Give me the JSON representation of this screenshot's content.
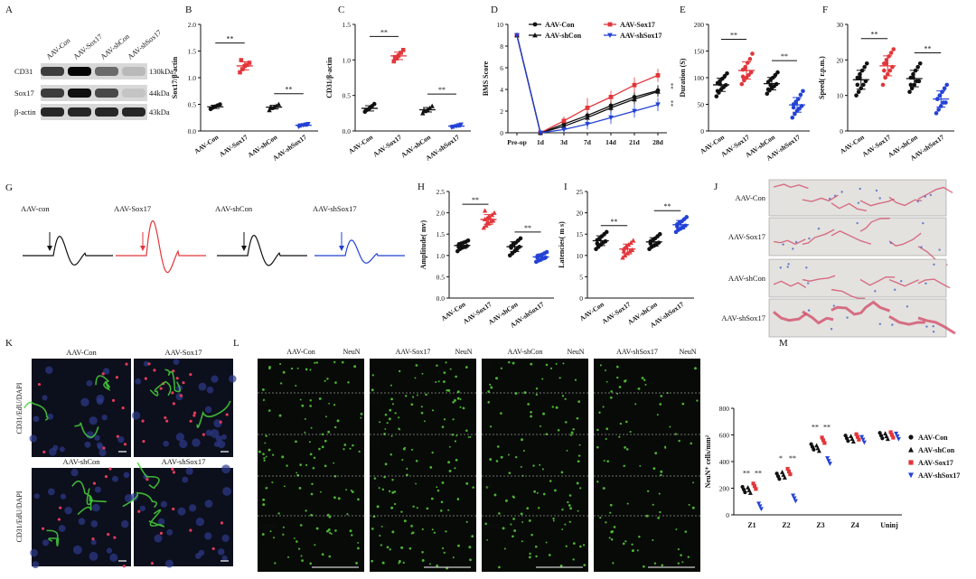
{
  "panel_letters": [
    "A",
    "B",
    "C",
    "D",
    "E",
    "F",
    "G",
    "H",
    "I",
    "J",
    "K",
    "L",
    "M"
  ],
  "colors": {
    "black": "#111111",
    "red": "#e2363a",
    "blue": "#2342d6",
    "green": "#58d23a",
    "pink": "#e23a5a"
  },
  "blot": {
    "lanes": [
      "AAV-Con",
      "AAV-Sox17",
      "AAV-shCon",
      "AAV-shSox17"
    ],
    "rows": [
      {
        "name": "CD31",
        "size": "130kDa",
        "intensity": [
          0.75,
          1.0,
          0.55,
          0.2
        ]
      },
      {
        "name": "Sox17",
        "size": "44kDa",
        "intensity": [
          0.75,
          0.95,
          0.7,
          0.15
        ]
      },
      {
        "name": "β-actin",
        "size": "43kDa",
        "intensity": [
          0.85,
          0.85,
          0.85,
          0.85
        ]
      }
    ]
  },
  "chart_data": [
    {
      "id": "B",
      "type": "scatter",
      "ylabel": "Sox17/β-actin",
      "ylim": [
        0,
        2
      ],
      "yticks": [
        "0.0",
        "0.5",
        "1.0",
        "1.5",
        "2.0"
      ],
      "categories": [
        "AAV-Con",
        "AAV-Sox17",
        "AAV-shCon",
        "AAV-shSox17"
      ],
      "groups": [
        [
          0.41,
          0.44,
          0.46,
          0.48,
          0.5,
          0.43
        ],
        [
          1.1,
          1.16,
          1.22,
          1.24,
          1.28,
          1.33
        ],
        [
          0.39,
          0.43,
          0.45,
          0.47,
          0.5,
          0.44
        ],
        [
          0.08,
          0.1,
          0.11,
          0.12,
          0.13,
          0.1
        ]
      ],
      "sig": [
        {
          "from": 0,
          "to": 1,
          "label": "**",
          "y": 1.65
        },
        {
          "from": 2,
          "to": 3,
          "label": "**",
          "y": 0.7
        }
      ]
    },
    {
      "id": "C",
      "type": "scatter",
      "ylabel": "CD31/β-actin",
      "ylim": [
        0,
        1.5
      ],
      "yticks": [
        "0.0",
        "0.5",
        "1.0",
        "1.5"
      ],
      "categories": [
        "AAV-Con",
        "AAV-Sox17",
        "AAV-shCon",
        "AAV-shSox17"
      ],
      "groups": [
        [
          0.27,
          0.3,
          0.32,
          0.35,
          0.38,
          0.29
        ],
        [
          0.98,
          1.02,
          1.06,
          1.1,
          1.14,
          1.04
        ],
        [
          0.25,
          0.28,
          0.3,
          0.32,
          0.35,
          0.29
        ],
        [
          0.05,
          0.06,
          0.07,
          0.08,
          0.09,
          0.06
        ]
      ],
      "sig": [
        {
          "from": 0,
          "to": 1,
          "label": "**",
          "y": 1.33
        },
        {
          "from": 2,
          "to": 3,
          "label": "**",
          "y": 0.52
        }
      ]
    },
    {
      "id": "D",
      "type": "line",
      "ylabel": "BMS Score",
      "ylim": [
        0,
        10
      ],
      "yticks": [
        "0",
        "2",
        "4",
        "6",
        "8",
        "10"
      ],
      "categories": [
        "Pre-op",
        "1d",
        "3d",
        "7d",
        "14d",
        "21d",
        "28d"
      ],
      "series": [
        {
          "name": "AAV-Con",
          "color": "#111111",
          "marker": "circle",
          "values": [
            9,
            0,
            0.8,
            1.6,
            2.5,
            3.3,
            3.9
          ],
          "err": [
            0,
            0,
            0.3,
            0.4,
            0.5,
            0.5,
            0.5
          ]
        },
        {
          "name": "AAV-Sox17",
          "color": "#e2363a",
          "marker": "square",
          "values": [
            9,
            0,
            1.1,
            2.3,
            3.3,
            4.4,
            5.3
          ],
          "err": [
            0,
            0,
            0.4,
            0.9,
            0.6,
            0.7,
            0.6
          ]
        },
        {
          "name": "AAV-shCon",
          "color": "#111111",
          "marker": "triangle",
          "values": [
            9,
            0,
            0.6,
            1.4,
            2.3,
            3.1,
            3.8
          ],
          "err": [
            0,
            0,
            0.3,
            0.5,
            0.5,
            0.5,
            0.5
          ]
        },
        {
          "name": "AAV-shSox17",
          "color": "#2342d6",
          "marker": "triangle-down",
          "values": [
            9,
            0,
            0.3,
            0.8,
            1.4,
            2.0,
            2.6
          ],
          "err": [
            0,
            0,
            0.3,
            0.5,
            0.6,
            0.6,
            0.6
          ]
        }
      ],
      "annotations": [
        "**",
        "**"
      ]
    },
    {
      "id": "E",
      "type": "scatter",
      "ylabel": "Duration (S)",
      "ylim": [
        0,
        200
      ],
      "yticks": [
        "0",
        "50",
        "100",
        "150",
        "200"
      ],
      "categories": [
        "AAV-Con",
        "AAV-Sox17",
        "AAV-shCon",
        "AAV-shSox17"
      ],
      "groups": [
        [
          65,
          72,
          78,
          82,
          86,
          90,
          94,
          98,
          103,
          108,
          75,
          88
        ],
        [
          88,
          95,
          100,
          105,
          110,
          115,
          120,
          128,
          135,
          145,
          102,
          118
        ],
        [
          70,
          76,
          80,
          84,
          88,
          92,
          96,
          100,
          105,
          110,
          78,
          86
        ],
        [
          25,
          32,
          38,
          42,
          47,
          50,
          55,
          60,
          68,
          75,
          44,
          52
        ]
      ],
      "sig": [
        {
          "from": 0,
          "to": 1,
          "label": "**",
          "y": 172
        },
        {
          "from": 2,
          "to": 3,
          "label": "**",
          "y": 132
        }
      ]
    },
    {
      "id": "F",
      "type": "scatter",
      "ylabel": "Speed( r.p.m.)",
      "ylim": [
        0,
        30
      ],
      "yticks": [
        "0",
        "10",
        "20",
        "30"
      ],
      "categories": [
        "AAV-Con",
        "AAV-Sox17",
        "AAV-shCon",
        "AAV-shSox17"
      ],
      "groups": [
        [
          10,
          11,
          12,
          13,
          14,
          15,
          16,
          17,
          18,
          19,
          13,
          15
        ],
        [
          13,
          15,
          16,
          17,
          18,
          19,
          20,
          21,
          22,
          23,
          17,
          19
        ],
        [
          11,
          12,
          13,
          14,
          14,
          15,
          16,
          17,
          18,
          19,
          13,
          15
        ],
        [
          5,
          6,
          7,
          8,
          8,
          9,
          10,
          11,
          12,
          13,
          9,
          10
        ]
      ],
      "sig": [
        {
          "from": 0,
          "to": 1,
          "label": "**",
          "y": 26
        },
        {
          "from": 2,
          "to": 3,
          "label": "**",
          "y": 22
        }
      ]
    },
    {
      "id": "H",
      "type": "scatter",
      "ylabel": "Amplitude( mv)",
      "ylim": [
        0,
        2.5
      ],
      "yticks": [
        "0.0",
        "0.5",
        "1.0",
        "1.5",
        "2.0",
        "2.5"
      ],
      "categories": [
        "AAV-Con",
        "AAV-Sox17",
        "AAV-shCon",
        "AAV-shSox17"
      ],
      "groups": [
        [
          1.1,
          1.15,
          1.18,
          1.2,
          1.22,
          1.25,
          1.28,
          1.3,
          1.32,
          1.35,
          1.2,
          1.24
        ],
        [
          1.65,
          1.7,
          1.75,
          1.8,
          1.82,
          1.85,
          1.88,
          1.9,
          1.95,
          2.0,
          2.05,
          1.78
        ],
        [
          1.0,
          1.05,
          1.1,
          1.15,
          1.2,
          1.22,
          1.25,
          1.3,
          1.35,
          1.4,
          1.18,
          1.28
        ],
        [
          0.85,
          0.88,
          0.9,
          0.93,
          0.95,
          0.98,
          1.0,
          1.02,
          1.05,
          1.08,
          0.95,
          1.0
        ]
      ],
      "sig": [
        {
          "from": 0,
          "to": 1,
          "label": "**",
          "y": 2.2
        },
        {
          "from": 2,
          "to": 3,
          "label": "**",
          "y": 1.55
        }
      ]
    },
    {
      "id": "I",
      "type": "scatter",
      "ylabel": "Latencies( m s)",
      "ylim": [
        0,
        25
      ],
      "yticks": [
        "0",
        "5",
        "10",
        "15",
        "20",
        "25"
      ],
      "categories": [
        "AAV-Con",
        "AAV-Sox17",
        "AAV-shCon",
        "AAV-shSox17"
      ],
      "groups": [
        [
          11.5,
          12,
          12.5,
          13,
          13.3,
          13.6,
          14,
          14.5,
          15,
          15.5,
          12.8,
          13.8
        ],
        [
          9.5,
          10,
          10.5,
          11,
          11.3,
          11.6,
          12,
          12.5,
          13,
          13.5,
          11,
          12.2
        ],
        [
          11.5,
          12,
          12.3,
          12.6,
          13,
          13.3,
          13.6,
          14,
          14.5,
          15,
          12.8,
          13.5
        ],
        [
          15.5,
          16,
          16.3,
          16.6,
          17,
          17.3,
          17.6,
          18,
          18.5,
          19,
          16.8,
          17.8
        ]
      ],
      "sig": [
        {
          "from": 0,
          "to": 1,
          "label": "**",
          "y": 17
        },
        {
          "from": 2,
          "to": 3,
          "label": "**",
          "y": 20.5
        }
      ]
    },
    {
      "id": "M",
      "type": "scatter",
      "ylabel": "NeuN⁺ cells/mm²",
      "ylim": [
        0,
        800
      ],
      "yticks": [
        "0",
        "200",
        "400",
        "600",
        "800"
      ],
      "categories": [
        "Z1",
        "Z2",
        "Z3",
        "Z4",
        "Uninj"
      ],
      "series": [
        {
          "name": "AAV-Con",
          "color": "#111111",
          "marker": "circle",
          "values": [
            190,
            290,
            510,
            575,
            595
          ]
        },
        {
          "name": "AAV-shCon",
          "color": "#111111",
          "marker": "triangle",
          "values": [
            185,
            300,
            500,
            570,
            590
          ]
        },
        {
          "name": "AAV-Sox17",
          "color": "#e2363a",
          "marker": "square",
          "values": [
            215,
            325,
            560,
            585,
            600
          ]
        },
        {
          "name": "AAV-shSox17",
          "color": "#2342d6",
          "marker": "triangle-down",
          "values": [
            65,
            125,
            405,
            565,
            590
          ]
        }
      ],
      "sig": [
        {
          "cat": "Z1",
          "labels": [
            "**",
            "**"
          ]
        },
        {
          "cat": "Z2",
          "labels": [
            "*",
            "**"
          ]
        },
        {
          "cat": "Z3",
          "labels": [
            "**",
            "**"
          ]
        }
      ]
    }
  ],
  "panel_g": {
    "labels": [
      "AAV-con",
      "AAV-Sox17",
      "AAV-shCon",
      "AAV-shSox17"
    ],
    "colors": [
      "#111111",
      "#e2363a",
      "#111111",
      "#2342d6"
    ],
    "amplitude_scale": [
      1.0,
      1.8,
      1.05,
      0.8
    ]
  },
  "panel_j": {
    "labels": [
      "AAV-Con",
      "AAV-Sox17",
      "AAV-shCon",
      "AAV-shSox17"
    ]
  },
  "panel_k": {
    "titles": [
      "AAV-Con",
      "AAV-Sox17",
      "AAV-shCon",
      "AAV-shSox17"
    ],
    "side_label": "CD31/EdU/DAPI"
  },
  "panel_l": {
    "titles": [
      "AAV-Con",
      "AAV-Sox17",
      "AAV-shCon",
      "AAV-shSox17"
    ],
    "marker": "NeuN",
    "zones": [
      "Z1",
      "Z2",
      "Z3",
      "Z4",
      "Uninj"
    ],
    "neun_density": [
      0.75,
      0.85,
      0.7,
      0.55
    ]
  }
}
